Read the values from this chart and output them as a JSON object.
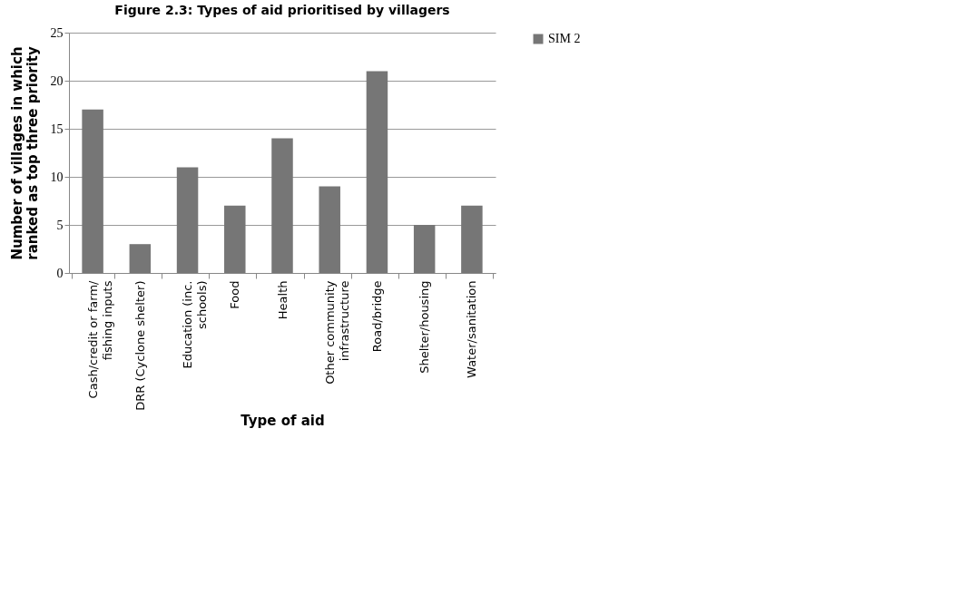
{
  "chart_data": {
    "type": "bar",
    "title": "Figure 2.3: Types of aid prioritised by villagers",
    "xlabel": "Type of aid",
    "ylabel": "Number of villages in which ranked as top three priority",
    "categories": [
      "Cash/credit or farm/ fishing inputs",
      "DRR (Cyclone shelter)",
      "Education (inc. schools)",
      "Food",
      "Health",
      "Other community infrastructure",
      "Road/bridge",
      "Shelter/housing",
      "Water/sanitation"
    ],
    "series": [
      {
        "name": "SIM 2",
        "color": "#767676",
        "values": [
          17,
          3,
          11,
          7,
          14,
          9,
          21,
          5,
          7
        ]
      }
    ],
    "ylim": [
      0,
      25
    ],
    "yticks": [
      0,
      5,
      10,
      15,
      20,
      25
    ],
    "grid": "y",
    "legend": "right"
  }
}
